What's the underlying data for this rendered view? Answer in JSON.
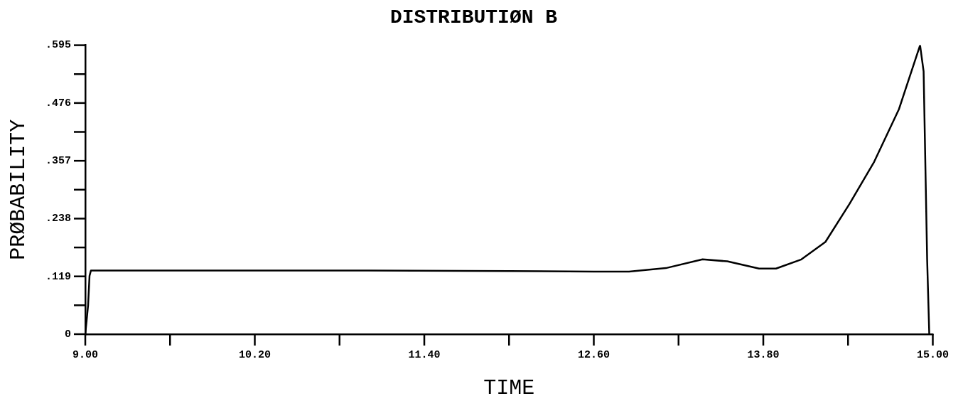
{
  "chart_data": {
    "type": "line",
    "title": "DISTRIBUTIØN B",
    "xlabel": "TIME",
    "ylabel": "PRØBABILITY",
    "x": [
      9.0,
      9.01,
      9.02,
      9.03,
      9.04,
      10.0,
      11.0,
      12.0,
      12.6,
      12.85,
      13.11,
      13.37,
      13.545,
      13.77,
      13.89,
      14.07,
      14.24,
      14.41,
      14.585,
      14.76,
      14.91,
      14.935,
      14.96,
      14.975
    ],
    "series": [
      {
        "color": "#000000",
        "values": [
          0,
          0.03,
          0.06,
          0.12,
          0.131,
          0.131,
          0.131,
          0.13,
          0.129,
          0.129,
          0.136,
          0.154,
          0.15,
          0.135,
          0.135,
          0.154,
          0.19,
          0.268,
          0.355,
          0.463,
          0.595,
          0.541,
          0.154,
          0
        ]
      }
    ],
    "xlim": [
      9.0,
      15.0
    ],
    "xticks": [
      {
        "value": 9.0,
        "label": "9.00"
      },
      {
        "value": 9.6,
        "label": null
      },
      {
        "value": 10.2,
        "label": "10.20"
      },
      {
        "value": 10.8,
        "label": null
      },
      {
        "value": 11.4,
        "label": "11.40"
      },
      {
        "value": 12.0,
        "label": null
      },
      {
        "value": 12.6,
        "label": "12.60"
      },
      {
        "value": 13.2,
        "label": null
      },
      {
        "value": 13.8,
        "label": "13.80"
      },
      {
        "value": 14.4,
        "label": null
      },
      {
        "value": 15.0,
        "label": "15.00"
      }
    ],
    "ylim": [
      0,
      0.595
    ],
    "yticks": [
      0,
      {
        "value": 0.0595,
        "label": null
      },
      {
        "value": 0.119,
        "label": ".119"
      },
      {
        "value": 0.1785,
        "label": null
      },
      {
        "value": 0.238,
        "label": ".238"
      },
      {
        "value": 0.2975,
        "label": null
      },
      {
        "value": 0.357,
        "label": ".357"
      },
      {
        "value": 0.4165,
        "label": null
      },
      {
        "value": 0.476,
        "label": ".476"
      },
      {
        "value": 0.5355,
        "label": null
      },
      {
        "value": 0.595,
        "label": ".595"
      }
    ],
    "grid": false,
    "legend": false,
    "marker": "none",
    "line_style": "solid"
  }
}
